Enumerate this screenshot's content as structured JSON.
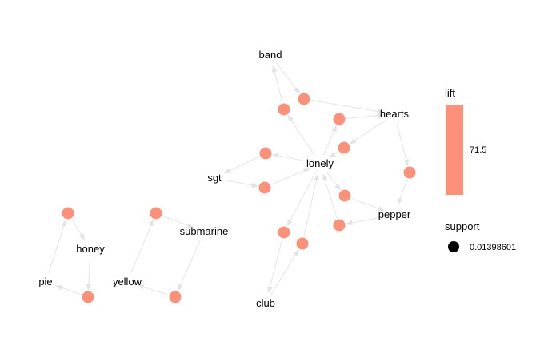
{
  "graph": {
    "node_color": "#FC917A",
    "edge_color": "#E8E8E8",
    "items": [
      {
        "id": "band",
        "label": "band"
      },
      {
        "id": "hearts",
        "label": "hearts"
      },
      {
        "id": "lonely",
        "label": "lonely"
      },
      {
        "id": "sgt",
        "label": "sgt"
      },
      {
        "id": "pepper",
        "label": "pepper"
      },
      {
        "id": "club",
        "label": "club"
      },
      {
        "id": "honey",
        "label": "honey"
      },
      {
        "id": "pie",
        "label": "pie"
      },
      {
        "id": "submarine",
        "label": "submarine"
      },
      {
        "id": "yellow",
        "label": "yellow"
      }
    ],
    "rules": [
      {
        "id": "r1",
        "from": "band",
        "to": "hearts"
      },
      {
        "id": "r2",
        "from": "lonely",
        "to": "band"
      },
      {
        "id": "r3",
        "from": "lonely",
        "to": "hearts"
      },
      {
        "id": "r4",
        "from": "hearts",
        "to": "lonely"
      },
      {
        "id": "r5",
        "from": "lonely",
        "to": "sgt"
      },
      {
        "id": "r6",
        "from": "sgt",
        "to": "lonely"
      },
      {
        "id": "r7",
        "from": "hearts",
        "to": "pepper"
      },
      {
        "id": "r8",
        "from": "lonely",
        "to": "pepper"
      },
      {
        "id": "r9",
        "from": "pepper",
        "to": "lonely"
      },
      {
        "id": "r10",
        "from": "lonely",
        "to": "club"
      },
      {
        "id": "r11",
        "from": "club",
        "to": "lonely"
      },
      {
        "id": "r12",
        "from": "pie",
        "to": "honey"
      },
      {
        "id": "r13",
        "from": "honey",
        "to": "pie"
      },
      {
        "id": "r14",
        "from": "yellow",
        "to": "submarine"
      },
      {
        "id": "r15",
        "from": "submarine",
        "to": "yellow"
      }
    ]
  },
  "legend": {
    "lift_title": "lift",
    "lift_value": "71.5",
    "lift_color": "#FC917A",
    "support_title": "support",
    "support_value": "0.01398601"
  }
}
